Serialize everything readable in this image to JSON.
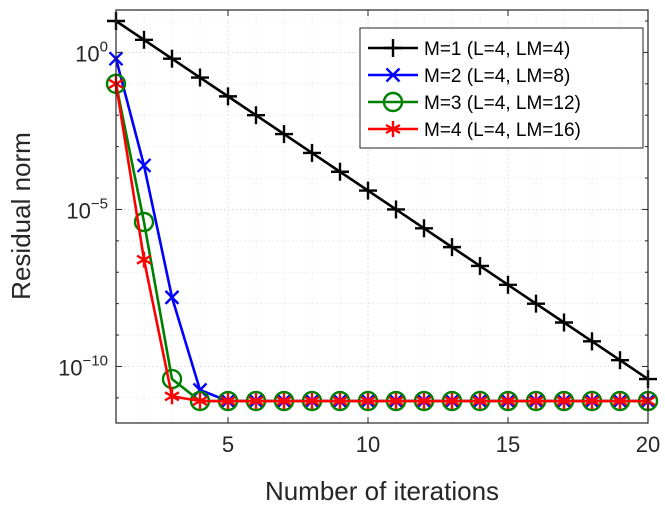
{
  "chart_data": {
    "type": "line",
    "title": "",
    "xlabel": "Number of iterations",
    "ylabel": "Residual norm",
    "xscale": "linear",
    "yscale": "log",
    "xlim": [
      1,
      20
    ],
    "ylim_log10": [
      -11.8,
      1.35
    ],
    "xticks": [
      5,
      10,
      15,
      20
    ],
    "xtick_labels": [
      "5",
      "10",
      "15",
      "20"
    ],
    "yticks_log10": [
      0,
      -5,
      -10
    ],
    "ytick_labels": [
      {
        "base": "10",
        "exp": "0"
      },
      {
        "base": "10",
        "exp": "−5"
      },
      {
        "base": "10",
        "exp": "−10"
      }
    ],
    "grid": true,
    "legend_position": "top-right",
    "series": [
      {
        "name": "M=1 (L=4, LM=4)",
        "color": "#000000",
        "marker": "plus",
        "x": [
          1,
          2,
          3,
          4,
          5,
          6,
          7,
          8,
          9,
          10,
          11,
          12,
          13,
          14,
          15,
          16,
          17,
          18,
          19,
          20
        ],
        "log10_y": [
          1.0,
          0.4,
          -0.2,
          -0.8,
          -1.4,
          -2.0,
          -2.6,
          -3.2,
          -3.8,
          -4.4,
          -5.0,
          -5.6,
          -6.2,
          -6.8,
          -7.4,
          -8.0,
          -8.6,
          -9.2,
          -9.8,
          -10.4
        ]
      },
      {
        "name": "M=2 (L=4, LM=8)",
        "color": "#0000ff",
        "marker": "x",
        "x": [
          1,
          2,
          3,
          4,
          5,
          6,
          7,
          8,
          9,
          10,
          11,
          12,
          13,
          14,
          15,
          16,
          17,
          18,
          19,
          20
        ],
        "log10_y": [
          -0.2,
          -3.6,
          -7.8,
          -10.75,
          -11.1,
          -11.1,
          -11.1,
          -11.1,
          -11.1,
          -11.1,
          -11.1,
          -11.1,
          -11.1,
          -11.1,
          -11.1,
          -11.1,
          -11.1,
          -11.1,
          -11.1,
          -11.1
        ]
      },
      {
        "name": "M=3 (L=4, LM=12)",
        "color": "#008000",
        "marker": "circle",
        "x": [
          1,
          2,
          3,
          4,
          5,
          6,
          7,
          8,
          9,
          10,
          11,
          12,
          13,
          14,
          15,
          16,
          17,
          18,
          19,
          20
        ],
        "log10_y": [
          -1.0,
          -5.4,
          -10.4,
          -11.1,
          -11.1,
          -11.1,
          -11.1,
          -11.1,
          -11.1,
          -11.1,
          -11.1,
          -11.1,
          -11.1,
          -11.1,
          -11.1,
          -11.1,
          -11.1,
          -11.1,
          -11.1,
          -11.1
        ]
      },
      {
        "name": "M=4 (L=4, LM=16)",
        "color": "#ff0000",
        "marker": "asterisk",
        "x": [
          1,
          2,
          3,
          4,
          5,
          6,
          7,
          8,
          9,
          10,
          11,
          12,
          13,
          14,
          15,
          16,
          17,
          18,
          19,
          20
        ],
        "log10_y": [
          -1.0,
          -6.6,
          -10.95,
          -11.1,
          -11.1,
          -11.1,
          -11.1,
          -11.1,
          -11.1,
          -11.1,
          -11.1,
          -11.1,
          -11.1,
          -11.1,
          -11.1,
          -11.1,
          -11.1,
          -11.1,
          -11.1,
          -11.1
        ]
      }
    ]
  }
}
